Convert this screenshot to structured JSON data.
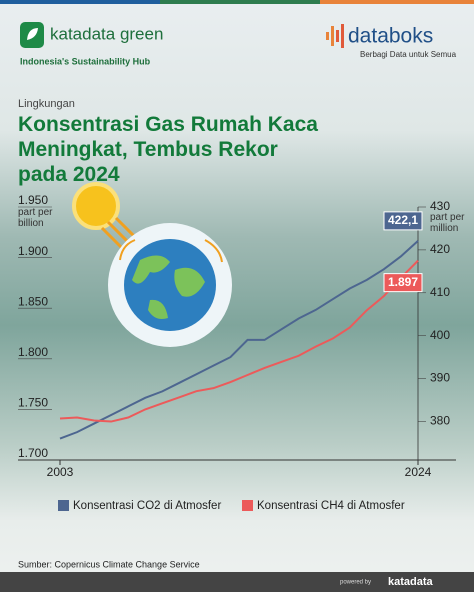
{
  "header": {
    "brand": "katadata green",
    "tagline": "Indonesia's Sustainability Hub",
    "partner": "databoks",
    "partner_tagline": "Berbagi Data untuk Semua",
    "section": "Lingkungan"
  },
  "footer": {
    "source": "Sumber: Copernicus Climate Change Service",
    "powered": "powered by",
    "logo": "katadata"
  },
  "chart_data": {
    "type": "line",
    "title": "Konsentrasi Gas Rumah Kaca Meningkat, Tembus Rekor pada 2024",
    "ylabel": "part per billion",
    "y2label": "part per million",
    "x": [
      2003,
      2004,
      2005,
      2006,
      2007,
      2008,
      2009,
      2010,
      2011,
      2012,
      2013,
      2014,
      2015,
      2016,
      2017,
      2018,
      2019,
      2020,
      2021,
      2022,
      2023,
      2024
    ],
    "xlim": [
      2003,
      2024
    ],
    "xticks": [
      2003,
      2024
    ],
    "ylim": [
      1700,
      1950
    ],
    "yticks": [
      {
        "value": 1700,
        "label": "1.700"
      },
      {
        "value": 1750,
        "label": "1.750"
      },
      {
        "value": 1800,
        "label": "1.800"
      },
      {
        "value": 1850,
        "label": "1.850"
      },
      {
        "value": 1900,
        "label": "1.900"
      },
      {
        "value": 1950,
        "label": "1.950"
      }
    ],
    "y2lim": [
      371,
      430
    ],
    "y2ticks": [
      380,
      390,
      400,
      410,
      420,
      430
    ],
    "series": [
      {
        "name": "Konsentrasi CO2 di Atmosfer",
        "color": "#4d6690",
        "axis": "y2",
        "values": [
          376,
          377.5,
          379.5,
          381.5,
          383.5,
          385.5,
          387,
          389,
          391,
          393,
          395,
          399,
          399,
          401.5,
          404,
          406,
          408.5,
          411,
          413,
          415.5,
          418.5,
          422.1
        ],
        "value_labels": [
          null,
          null,
          null,
          null,
          null,
          null,
          null,
          null,
          null,
          null,
          null,
          null,
          null,
          null,
          null,
          null,
          null,
          null,
          null,
          null,
          null,
          "422,1"
        ]
      },
      {
        "name": "Konsentrasi CH4 di Atmosfer",
        "color": "#ec5a5a",
        "values": [
          1741,
          1742,
          1739,
          1738,
          1742,
          1750,
          1756,
          1762,
          1768,
          1771,
          1777,
          1784,
          1791,
          1797,
          1803,
          1812,
          1820,
          1831,
          1848,
          1862,
          1880,
          1897
        ],
        "value_labels": [
          null,
          null,
          null,
          null,
          null,
          null,
          null,
          null,
          null,
          null,
          null,
          null,
          null,
          null,
          null,
          null,
          null,
          null,
          null,
          null,
          null,
          "1.897"
        ]
      }
    ]
  }
}
